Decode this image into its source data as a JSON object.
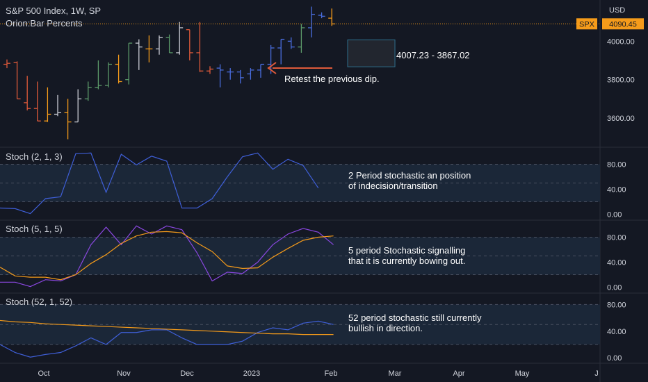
{
  "header": {
    "title": "S&P 500 Index, 1W, SP",
    "indicator": "Orion:Bar Percents",
    "currency": "USD"
  },
  "price_tag": {
    "symbol": "SPX",
    "value": "4090.45",
    "value_num": 4090.45,
    "color": "#f59b1a"
  },
  "colors": {
    "background": "#141823",
    "text": "#d1d4dc",
    "axis_text": "#d1d4dc",
    "stoch_fast": "#3f5fd8",
    "stoch_k": "#8a47e0",
    "stoch_d": "#f59b1a",
    "band_fill": "#1b2738",
    "bar_red": "#e05a3a",
    "bar_orange": "#f59b1a",
    "bar_green": "#5c9a6a",
    "bar_white": "#c9ccd4",
    "bar_blue": "#4a6ee0",
    "arrow": "#e05a3a"
  },
  "annotations": {
    "range_label": "4007.23 - 3867.02",
    "retest": "Retest the previous dip.",
    "note1_line1": "2 Period stochastic an position",
    "note1_line2": "of indecision/transition",
    "note2_line1": "5 period Stochastic signalling",
    "note2_line2": "that it is currently bowing out.",
    "note3_line1": "52 period stochastic still currently",
    "note3_line2": "bullish in direction."
  },
  "chart_data": {
    "type": "bar",
    "x_ticks": [
      "Oct",
      "Nov",
      "Dec",
      "2023",
      "Feb",
      "Mar",
      "Apr",
      "May",
      "J"
    ],
    "price_axis_ticks": [
      "4000.00",
      "3800.00",
      "3600.00"
    ],
    "price_range": [
      3470,
      4200
    ],
    "range_box": [
      3867.02,
      4007.23
    ],
    "ohlc": [
      {
        "o": 3880,
        "h": 3905,
        "l": 3860,
        "c": 3885,
        "color": "red"
      },
      {
        "o": 3890,
        "h": 3895,
        "l": 3700,
        "c": 3700,
        "color": "red"
      },
      {
        "o": 3680,
        "h": 3820,
        "l": 3640,
        "c": 3650,
        "color": "red"
      },
      {
        "o": 3650,
        "h": 3790,
        "l": 3585,
        "c": 3585,
        "color": "red"
      },
      {
        "o": 3585,
        "h": 3760,
        "l": 3580,
        "c": 3620,
        "color": "orange"
      },
      {
        "o": 3620,
        "h": 3720,
        "l": 3610,
        "c": 3630,
        "color": "white"
      },
      {
        "o": 3630,
        "h": 3700,
        "l": 3490,
        "c": 3580,
        "color": "orange"
      },
      {
        "o": 3580,
        "h": 3750,
        "l": 3580,
        "c": 3700,
        "color": "white"
      },
      {
        "o": 3700,
        "h": 3790,
        "l": 3690,
        "c": 3760,
        "color": "green"
      },
      {
        "o": 3760,
        "h": 3900,
        "l": 3750,
        "c": 3770,
        "color": "green"
      },
      {
        "o": 3770,
        "h": 3890,
        "l": 3760,
        "c": 3880,
        "color": "green"
      },
      {
        "o": 3880,
        "h": 3930,
        "l": 3780,
        "c": 3790,
        "color": "orange"
      },
      {
        "o": 3800,
        "h": 3990,
        "l": 3775,
        "c": 3990,
        "color": "green"
      },
      {
        "o": 3990,
        "h": 4010,
        "l": 3850,
        "c": 3970,
        "color": "white"
      },
      {
        "o": 3960,
        "h": 4030,
        "l": 3890,
        "c": 3960,
        "color": "orange"
      },
      {
        "o": 3960,
        "h": 4030,
        "l": 3930,
        "c": 4020,
        "color": "white"
      },
      {
        "o": 4020,
        "h": 4035,
        "l": 3940,
        "c": 3940,
        "color": "green"
      },
      {
        "o": 3940,
        "h": 4100,
        "l": 3930,
        "c": 4070,
        "color": "white"
      },
      {
        "o": 4060,
        "h": 4060,
        "l": 3900,
        "c": 3940,
        "color": "red"
      },
      {
        "o": 3940,
        "h": 4100,
        "l": 3840,
        "c": 3845,
        "color": "red"
      },
      {
        "o": 3845,
        "h": 3870,
        "l": 3830,
        "c": 3855,
        "color": "red"
      },
      {
        "o": 3860,
        "h": 3880,
        "l": 3760,
        "c": 3850,
        "color": "blue"
      },
      {
        "o": 3840,
        "h": 3860,
        "l": 3800,
        "c": 3840,
        "color": "blue"
      },
      {
        "o": 3840,
        "h": 3850,
        "l": 3780,
        "c": 3810,
        "color": "blue"
      },
      {
        "o": 3830,
        "h": 3860,
        "l": 3800,
        "c": 3850,
        "color": "blue"
      },
      {
        "o": 3850,
        "h": 3880,
        "l": 3810,
        "c": 3880,
        "color": "blue"
      },
      {
        "o": 3880,
        "h": 3980,
        "l": 3830,
        "c": 3965,
        "color": "blue"
      },
      {
        "o": 3965,
        "h": 4010,
        "l": 3880,
        "c": 4010,
        "color": "blue"
      },
      {
        "o": 4000,
        "h": 4020,
        "l": 3960,
        "c": 3970,
        "color": "blue"
      },
      {
        "o": 3970,
        "h": 4090,
        "l": 3940,
        "c": 4070,
        "color": "green"
      },
      {
        "o": 4070,
        "h": 4180,
        "l": 4020,
        "c": 4140,
        "color": "blue"
      },
      {
        "o": 4135,
        "h": 4150,
        "l": 4120,
        "c": 4130,
        "color": "blue"
      },
      {
        "o": 4120,
        "h": 4170,
        "l": 4080,
        "c": 4090,
        "color": "orange"
      }
    ],
    "panels": [
      {
        "name": "Stoch (2, 1, 3)",
        "range": [
          -5,
          105
        ],
        "ticks": [
          "80.00",
          "40.00",
          "0.00"
        ],
        "bands": [
          20,
          50,
          80
        ],
        "series": [
          {
            "key": "stoch_fast",
            "values": [
              10,
              9,
              1,
              25,
              28,
              97,
              98,
              35,
              96,
              79,
              93,
              85,
              10,
              10,
              25,
              60,
              92,
              98,
              72,
              88,
              78,
              42
            ]
          }
        ]
      },
      {
        "name": "Stoch (5, 1, 5)",
        "range": [
          -5,
          105
        ],
        "ticks": [
          "80.00",
          "40.00",
          "0.00"
        ],
        "bands": [
          20,
          50,
          80
        ],
        "series": [
          {
            "key": "stoch_k",
            "values": [
              8,
              8,
              1,
              12,
              10,
              20,
              68,
              96,
              68,
              98,
              85,
              98,
              92,
              55,
              10,
              24,
              22,
              40,
              68,
              85,
              94,
              88,
              68
            ]
          },
          {
            "key": "stoch_d",
            "values": [
              32,
              18,
              16,
              16,
              12,
              20,
              38,
              52,
              70,
              82,
              88,
              89,
              87,
              71,
              57,
              34,
              30,
              31,
              48,
              62,
              75,
              80,
              82
            ]
          }
        ]
      },
      {
        "name": "Stoch (52, 1, 52)",
        "range": [
          -5,
          95
        ],
        "ticks": [
          "80.00",
          "40.00",
          "0.00"
        ],
        "bands": [
          20,
          50,
          80
        ],
        "series": [
          {
            "key": "stoch_fast",
            "values": [
              20,
              8,
              1,
              5,
              8,
              18,
              30,
              20,
              38,
              38,
              42,
              42,
              30,
              20,
              20,
              20,
              25,
              38,
              45,
              42,
              52,
              55,
              50
            ]
          },
          {
            "key": "stoch_d",
            "values": [
              56,
              54,
              53,
              51,
              50,
              49,
              48,
              47,
              46,
              45,
              44,
              43,
              42,
              41,
              40,
              39,
              38,
              37,
              36,
              36,
              35,
              35,
              35
            ]
          }
        ]
      }
    ]
  }
}
